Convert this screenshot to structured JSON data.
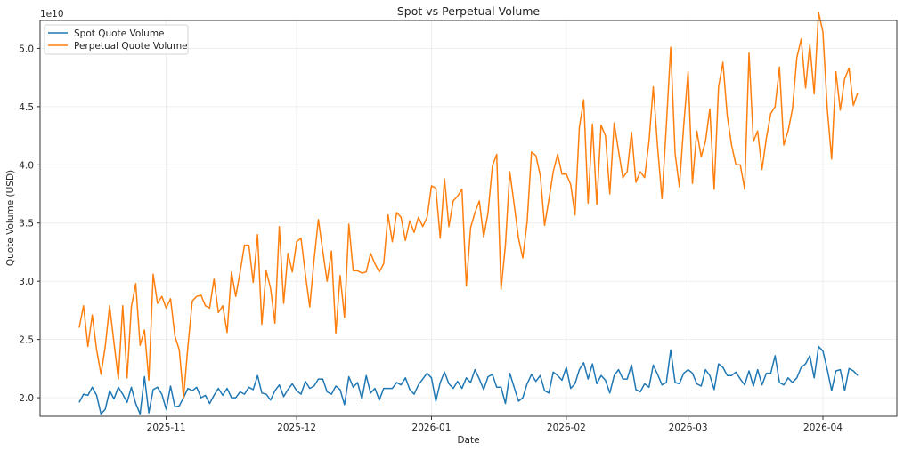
{
  "chart_data": {
    "type": "line",
    "title": "Spot vs Perpetual Volume",
    "xlabel": "Date",
    "ylabel": "Quote Volume (USD)",
    "y_offset_label": "1e10",
    "y_unit_multiplier": 10000000000.0,
    "ylim": [
      1.84,
      5.24
    ],
    "xlim": [
      "2025-10-03",
      "2026-04-18"
    ],
    "y_ticks": [
      2.0,
      2.5,
      3.0,
      3.5,
      4.0,
      4.5,
      5.0
    ],
    "y_tick_labels": [
      "2.0",
      "2.5",
      "3.0",
      "3.5",
      "4.0",
      "4.5",
      "5.0"
    ],
    "x_ticks": [
      "2025-11-01",
      "2025-12-01",
      "2026-01-01",
      "2026-02-01",
      "2026-03-01",
      "2026-04-01"
    ],
    "x_tick_labels": [
      "2025-11",
      "2025-12",
      "2026-01",
      "2026-02",
      "2026-03",
      "2026-04"
    ],
    "grid": true,
    "legend_placement": "top-left",
    "x": [
      "2025-10-12",
      "2025-10-13",
      "2025-10-14",
      "2025-10-15",
      "2025-10-16",
      "2025-10-17",
      "2025-10-18",
      "2025-10-19",
      "2025-10-20",
      "2025-10-21",
      "2025-10-22",
      "2025-10-23",
      "2025-10-24",
      "2025-10-25",
      "2025-10-26",
      "2025-10-27",
      "2025-10-28",
      "2025-10-29",
      "2025-10-30",
      "2025-10-31",
      "2025-11-01",
      "2025-11-02",
      "2025-11-03",
      "2025-11-04",
      "2025-11-05",
      "2025-11-06",
      "2025-11-07",
      "2025-11-08",
      "2025-11-09",
      "2025-11-10",
      "2025-11-11",
      "2025-11-12",
      "2025-11-13",
      "2025-11-14",
      "2025-11-15",
      "2025-11-16",
      "2025-11-17",
      "2025-11-18",
      "2025-11-19",
      "2025-11-20",
      "2025-11-21",
      "2025-11-22",
      "2025-11-23",
      "2025-11-24",
      "2025-11-25",
      "2025-11-26",
      "2025-11-27",
      "2025-11-28",
      "2025-11-29",
      "2025-11-30",
      "2025-12-01",
      "2025-12-02",
      "2025-12-03",
      "2025-12-04",
      "2025-12-05",
      "2025-12-06",
      "2025-12-07",
      "2025-12-08",
      "2025-12-09",
      "2025-12-10",
      "2025-12-11",
      "2025-12-12",
      "2025-12-13",
      "2025-12-14",
      "2025-12-15",
      "2025-12-16",
      "2025-12-17",
      "2025-12-18",
      "2025-12-19",
      "2025-12-20",
      "2025-12-21",
      "2025-12-22",
      "2025-12-23",
      "2025-12-24",
      "2025-12-25",
      "2025-12-26",
      "2025-12-27",
      "2025-12-28",
      "2025-12-29",
      "2025-12-30",
      "2025-12-31",
      "2026-01-01",
      "2026-01-02",
      "2026-01-03",
      "2026-01-04",
      "2026-01-05",
      "2026-01-06",
      "2026-01-07",
      "2026-01-08",
      "2026-01-09",
      "2026-01-10",
      "2026-01-11",
      "2026-01-12",
      "2026-01-13",
      "2026-01-14",
      "2026-01-15",
      "2026-01-16",
      "2026-01-17",
      "2026-01-18",
      "2026-01-19",
      "2026-01-20",
      "2026-01-21",
      "2026-01-22",
      "2026-01-23",
      "2026-01-24",
      "2026-01-25",
      "2026-01-26",
      "2026-01-27",
      "2026-01-28",
      "2026-01-29",
      "2026-01-30",
      "2026-01-31",
      "2026-02-01",
      "2026-02-02",
      "2026-02-03",
      "2026-02-04",
      "2026-02-05",
      "2026-02-06",
      "2026-02-07",
      "2026-02-08",
      "2026-02-09",
      "2026-02-10",
      "2026-02-11",
      "2026-02-12",
      "2026-02-13",
      "2026-02-14",
      "2026-02-15",
      "2026-02-16",
      "2026-02-17",
      "2026-02-18",
      "2026-02-19",
      "2026-02-20",
      "2026-02-21",
      "2026-02-22",
      "2026-02-23",
      "2026-02-24",
      "2026-02-25",
      "2026-02-26",
      "2026-02-27",
      "2026-02-28",
      "2026-03-01",
      "2026-03-02",
      "2026-03-03",
      "2026-03-04",
      "2026-03-05",
      "2026-03-06",
      "2026-03-07",
      "2026-03-08",
      "2026-03-09",
      "2026-03-10",
      "2026-03-11",
      "2026-03-12",
      "2026-03-13",
      "2026-03-14",
      "2026-03-15",
      "2026-03-16",
      "2026-03-17",
      "2026-03-18",
      "2026-03-19",
      "2026-03-20",
      "2026-03-21",
      "2026-03-22",
      "2026-03-23",
      "2026-03-24",
      "2026-03-25",
      "2026-03-26",
      "2026-03-27",
      "2026-03-28",
      "2026-03-29",
      "2026-03-30",
      "2026-03-31",
      "2026-04-01",
      "2026-04-02",
      "2026-04-03",
      "2026-04-04",
      "2026-04-05",
      "2026-04-06",
      "2026-04-07",
      "2026-04-08",
      "2026-04-09"
    ],
    "series": [
      {
        "name": "Spot Quote Volume",
        "color": "#1f77b4",
        "values": [
          1.96,
          2.03,
          2.02,
          2.09,
          2.02,
          1.86,
          1.9,
          2.06,
          1.99,
          2.09,
          2.03,
          1.96,
          2.09,
          1.95,
          1.86,
          2.18,
          1.87,
          2.07,
          2.09,
          2.03,
          1.9,
          2.1,
          1.92,
          1.93,
          2.0,
          2.08,
          2.06,
          2.09,
          2.0,
          2.02,
          1.95,
          2.02,
          2.08,
          2.02,
          2.08,
          2.0,
          2.0,
          2.05,
          2.03,
          2.09,
          2.07,
          2.19,
          2.04,
          2.03,
          1.98,
          2.06,
          2.11,
          2.01,
          2.07,
          2.12,
          2.06,
          2.03,
          2.14,
          2.08,
          2.1,
          2.16,
          2.16,
          2.05,
          2.03,
          2.1,
          2.07,
          1.94,
          2.18,
          2.09,
          2.13,
          1.99,
          2.19,
          2.04,
          2.08,
          1.98,
          2.08,
          2.08,
          2.08,
          2.13,
          2.11,
          2.17,
          2.07,
          2.03,
          2.11,
          2.16,
          2.21,
          2.17,
          1.97,
          2.13,
          2.22,
          2.12,
          2.08,
          2.14,
          2.08,
          2.17,
          2.13,
          2.24,
          2.16,
          2.07,
          2.18,
          2.2,
          2.09,
          2.09,
          1.95,
          2.21,
          2.09,
          1.97,
          2.0,
          2.12,
          2.2,
          2.14,
          2.19,
          2.06,
          2.04,
          2.22,
          2.19,
          2.15,
          2.26,
          2.08,
          2.12,
          2.24,
          2.3,
          2.16,
          2.29,
          2.12,
          2.19,
          2.15,
          2.04,
          2.19,
          2.24,
          2.16,
          2.16,
          2.28,
          2.07,
          2.05,
          2.12,
          2.09,
          2.28,
          2.2,
          2.11,
          2.13,
          2.41,
          2.13,
          2.12,
          2.21,
          2.24,
          2.21,
          2.12,
          2.1,
          2.24,
          2.19,
          2.07,
          2.29,
          2.26,
          2.19,
          2.19,
          2.22,
          2.16,
          2.11,
          2.23,
          2.1,
          2.24,
          2.11,
          2.21,
          2.21,
          2.36,
          2.13,
          2.11,
          2.17,
          2.13,
          2.17,
          2.26,
          2.29,
          2.36,
          2.17,
          2.44,
          2.4,
          2.24,
          2.06,
          2.23,
          2.24,
          2.06,
          2.25,
          2.23,
          2.19
        ]
      },
      {
        "name": "Perpetual Quote Volume",
        "color": "#ff7f0e",
        "values": [
          2.6,
          2.79,
          2.44,
          2.71,
          2.41,
          2.2,
          2.44,
          2.79,
          2.47,
          2.16,
          2.79,
          2.17,
          2.78,
          2.98,
          2.45,
          2.58,
          2.15,
          3.06,
          2.81,
          2.87,
          2.77,
          2.85,
          2.53,
          2.41,
          2.0,
          2.44,
          2.83,
          2.87,
          2.88,
          2.79,
          2.77,
          3.02,
          2.73,
          2.79,
          2.56,
          3.08,
          2.87,
          3.08,
          3.31,
          3.31,
          2.99,
          3.4,
          2.63,
          3.09,
          2.94,
          2.64,
          3.47,
          2.81,
          3.24,
          3.08,
          3.34,
          3.37,
          3.06,
          2.78,
          3.18,
          3.53,
          3.26,
          3.0,
          3.26,
          2.55,
          3.05,
          2.69,
          3.49,
          3.09,
          3.09,
          3.07,
          3.08,
          3.24,
          3.15,
          3.08,
          3.15,
          3.57,
          3.34,
          3.59,
          3.55,
          3.35,
          3.52,
          3.42,
          3.55,
          3.47,
          3.55,
          3.82,
          3.8,
          3.37,
          3.88,
          3.47,
          3.69,
          3.73,
          3.79,
          2.96,
          3.46,
          3.59,
          3.69,
          3.38,
          3.59,
          3.99,
          4.09,
          2.93,
          3.31,
          3.94,
          3.66,
          3.37,
          3.2,
          3.51,
          4.11,
          4.08,
          3.91,
          3.48,
          3.7,
          3.94,
          4.09,
          3.92,
          3.92,
          3.83,
          3.57,
          4.32,
          4.56,
          3.67,
          4.35,
          3.66,
          4.34,
          4.25,
          3.75,
          4.36,
          4.12,
          3.89,
          3.94,
          4.28,
          3.85,
          3.94,
          3.89,
          4.2,
          4.67,
          4.15,
          3.71,
          4.34,
          5.01,
          4.1,
          3.81,
          4.34,
          4.8,
          3.84,
          4.29,
          4.07,
          4.2,
          4.48,
          3.79,
          4.67,
          4.88,
          4.42,
          4.17,
          4.0,
          4.0,
          3.79,
          4.96,
          4.2,
          4.29,
          3.96,
          4.23,
          4.44,
          4.5,
          4.84,
          4.17,
          4.29,
          4.48,
          4.92,
          5.08,
          4.66,
          5.03,
          4.61,
          5.31,
          5.14,
          4.48,
          4.05,
          4.8,
          4.47,
          4.74,
          4.83,
          4.51,
          4.62
        ]
      }
    ]
  }
}
